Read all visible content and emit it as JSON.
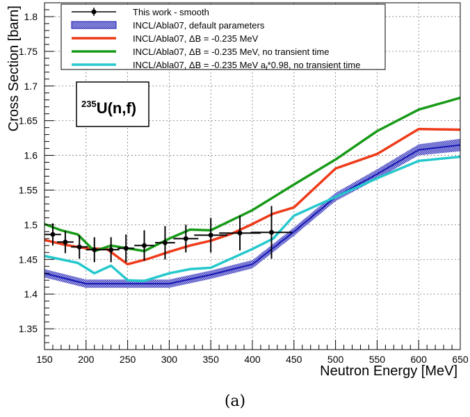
{
  "chart_data": {
    "type": "line",
    "xlabel": "Neutron Energy [MeV]",
    "ylabel": "Cross Section [barn]",
    "xlim": [
      150,
      650
    ],
    "ylim": [
      1.32,
      1.82
    ],
    "x_ticks": [
      "150",
      "200",
      "250",
      "300",
      "350",
      "400",
      "450",
      "500",
      "550",
      "600",
      "650"
    ],
    "y_ticks": [
      "1.35",
      "1.4",
      "1.45",
      "1.5",
      "1.55",
      "1.6",
      "1.65",
      "1.7",
      "1.75",
      "1.8"
    ],
    "grid": true,
    "legend_position": "top",
    "annotation": {
      "sup": "235",
      "text": "U(n,f)"
    },
    "data": {
      "name": "This work - smooth",
      "color": "#000000",
      "points": [
        {
          "x": 160,
          "y": 1.486,
          "xerr": 10,
          "yerr": 0.016
        },
        {
          "x": 175,
          "y": 1.475,
          "xerr": 10,
          "yerr": 0.016
        },
        {
          "x": 192,
          "y": 1.468,
          "xerr": 10,
          "yerr": 0.017
        },
        {
          "x": 210,
          "y": 1.464,
          "xerr": 10,
          "yerr": 0.018
        },
        {
          "x": 230,
          "y": 1.464,
          "xerr": 10,
          "yerr": 0.018
        },
        {
          "x": 248,
          "y": 1.466,
          "xerr": 10,
          "yerr": 0.02
        },
        {
          "x": 270,
          "y": 1.47,
          "xerr": 12,
          "yerr": 0.022
        },
        {
          "x": 295,
          "y": 1.474,
          "xerr": 12,
          "yerr": 0.024
        },
        {
          "x": 320,
          "y": 1.48,
          "xerr": 15,
          "yerr": 0.02
        },
        {
          "x": 350,
          "y": 1.485,
          "xerr": 20,
          "yerr": 0.025
        },
        {
          "x": 385,
          "y": 1.488,
          "xerr": 25,
          "yerr": 0.025
        },
        {
          "x": 423,
          "y": 1.489,
          "xerr": 25,
          "yerr": 0.038
        }
      ]
    },
    "band": {
      "name": "INCL/Abla07, default parameters",
      "color": "#1515b5",
      "fill": "#a9a9e2",
      "x": [
        150,
        200,
        250,
        270,
        300,
        350,
        400,
        450,
        500,
        550,
        600,
        650
      ],
      "y": [
        1.43,
        1.415,
        1.415,
        1.415,
        1.415,
        1.428,
        1.443,
        1.49,
        1.54,
        1.573,
        1.608,
        1.615
      ],
      "err": [
        0.006,
        0.006,
        0.006,
        0.006,
        0.006,
        0.006,
        0.006,
        0.006,
        0.006,
        0.007,
        0.008,
        0.009
      ]
    },
    "series": [
      {
        "name": "INCL/Abla07, ΔB = -0.235 MeV",
        "color": "#ee3a19",
        "x": [
          150,
          175,
          200,
          225,
          250,
          275,
          300,
          325,
          350,
          375,
          400,
          425,
          450,
          500,
          550,
          600,
          650
        ],
        "y": [
          1.478,
          1.471,
          1.466,
          1.465,
          1.443,
          1.451,
          1.461,
          1.47,
          1.477,
          1.487,
          1.501,
          1.516,
          1.525,
          1.581,
          1.602,
          1.638,
          1.637
        ]
      },
      {
        "name": "INCL/Abla07, ΔB = -0.235 MeV, no transient time",
        "color": "#179a17",
        "x": [
          150,
          170,
          190,
          210,
          230,
          250,
          270,
          300,
          325,
          350,
          400,
          450,
          500,
          550,
          600,
          650
        ],
        "y": [
          1.501,
          1.492,
          1.486,
          1.462,
          1.47,
          1.466,
          1.462,
          1.48,
          1.493,
          1.492,
          1.521,
          1.558,
          1.594,
          1.635,
          1.666,
          1.683
        ]
      },
      {
        "name": "INCL/Abla07, ΔB = -0.235 MeV a_f*0.98, no transient time",
        "color": "#25c8cc",
        "x": [
          150,
          170,
          190,
          210,
          230,
          250,
          270,
          300,
          325,
          350,
          400,
          425,
          450,
          500,
          550,
          600,
          650
        ],
        "y": [
          1.455,
          1.45,
          1.445,
          1.43,
          1.441,
          1.42,
          1.419,
          1.43,
          1.436,
          1.438,
          1.465,
          1.48,
          1.513,
          1.54,
          1.567,
          1.592,
          1.598
        ]
      }
    ]
  },
  "caption": "(a)"
}
